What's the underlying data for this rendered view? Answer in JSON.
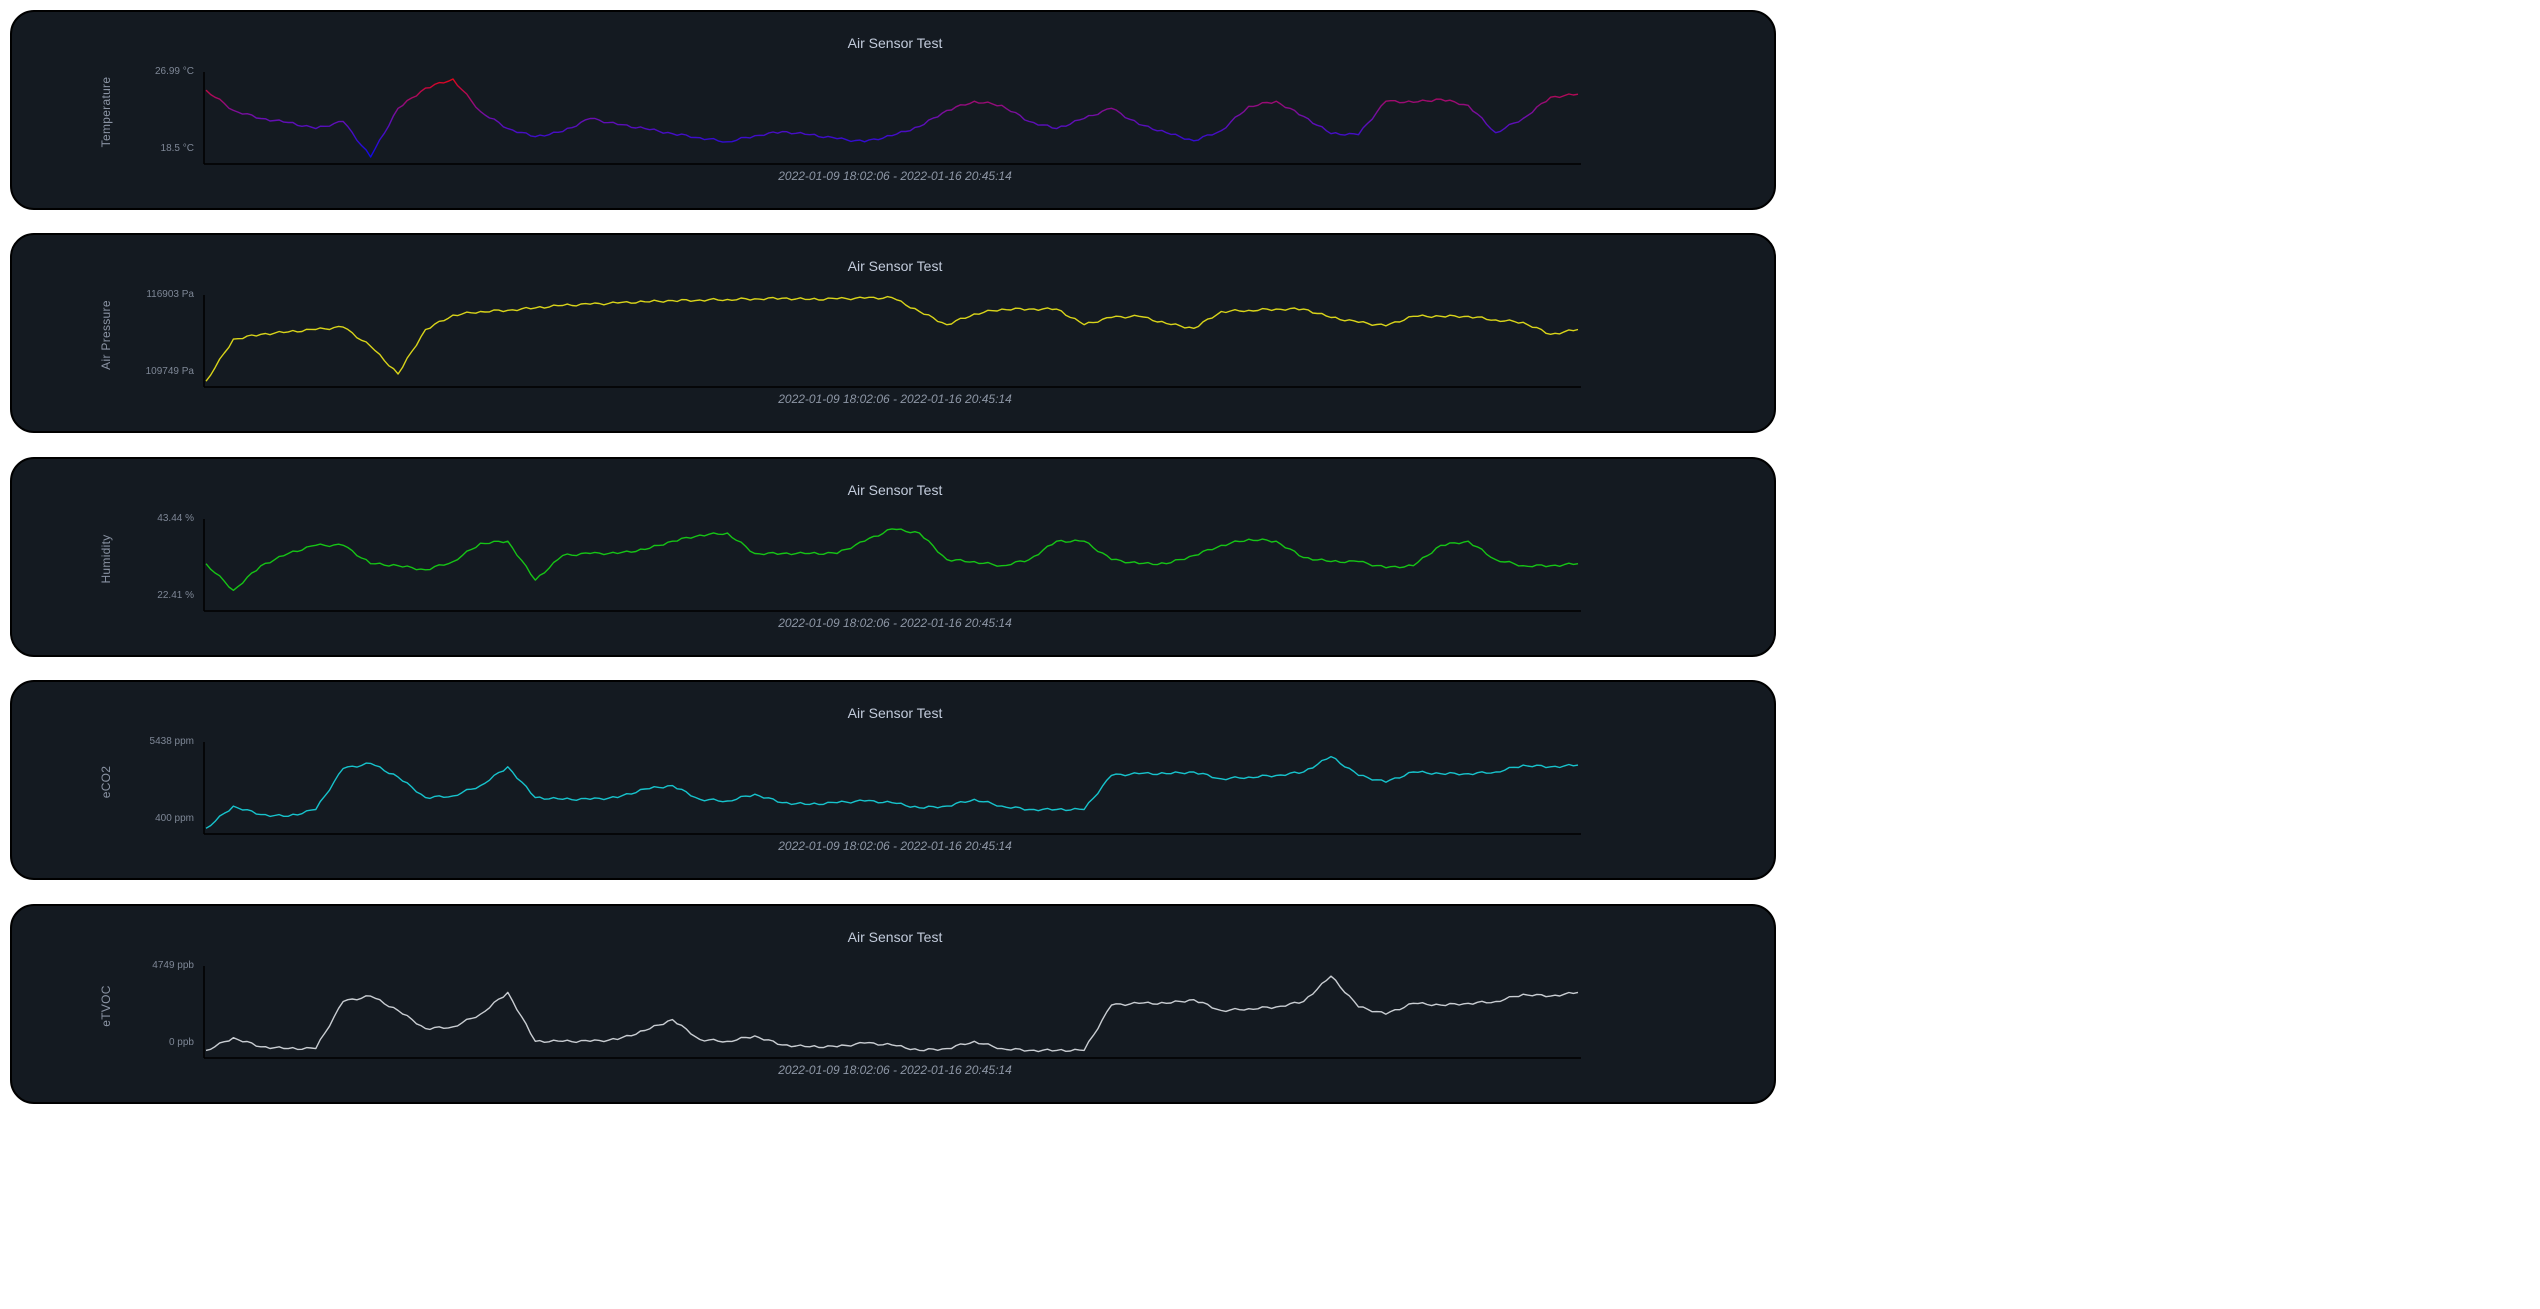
{
  "page": {
    "background": "#ffffff",
    "card_background": "#141a21"
  },
  "charts": [
    {
      "id": "temperature",
      "title": "Air Sensor Test",
      "ylabel": "Temperature",
      "ytick_top": "26.99 °C",
      "ytick_bottom": "18.5 °C",
      "daterange": "2022-01-09 18:02:06 - 2022-01-16 20:45:14",
      "color": "#e00012",
      "gradient": [
        "#0d0ae8",
        "#6b0fb0",
        "#e3051a"
      ]
    },
    {
      "id": "pressure",
      "title": "Air Sensor Test",
      "ylabel": "Air Pressure",
      "ytick_top": "116903 Pa",
      "ytick_bottom": "109749 Pa",
      "daterange": "2022-01-09 18:02:06 - 2022-01-16 20:45:14",
      "color": "#d9d41a"
    },
    {
      "id": "humidity",
      "title": "Air Sensor Test",
      "ylabel": "Humidity",
      "ytick_top": "43.44 %",
      "ytick_bottom": "22.41 %",
      "daterange": "2022-01-09 18:02:06 - 2022-01-16 20:45:14",
      "color": "#16c416"
    },
    {
      "id": "eco2",
      "title": "Air Sensor Test",
      "ylabel": "eCO2",
      "ytick_top": "5438 ppm",
      "ytick_bottom": "400 ppm",
      "daterange": "2022-01-09 18:02:06 - 2022-01-16 20:45:14",
      "color": "#17c3cc"
    },
    {
      "id": "etvoc",
      "title": "Air Sensor Test",
      "ylabel": "eTVOC",
      "ytick_top": "4749 ppb",
      "ytick_bottom": "0 ppb",
      "daterange": "2022-01-09 18:02:06 - 2022-01-16 20:45:14",
      "color": "#c9cdd2"
    }
  ],
  "chart_data": [
    {
      "type": "line",
      "title": "Air Sensor Test",
      "xlabel": "2022-01-09 18:02:06 - 2022-01-16 20:45:14",
      "ylabel": "Temperature",
      "ylim": [
        18.5,
        26.99
      ],
      "y_unit": "°C",
      "x": [
        0,
        2,
        4,
        6,
        8,
        10,
        12,
        14,
        16,
        18,
        20,
        22,
        24,
        26,
        28,
        30,
        32,
        34,
        36,
        38,
        40,
        42,
        44,
        46,
        48,
        50,
        52,
        54,
        56,
        58,
        60,
        62,
        64,
        66,
        68,
        70,
        72,
        74,
        76,
        78,
        80,
        82,
        84,
        86,
        88,
        90,
        92,
        94,
        96,
        98,
        100
      ],
      "values": [
        25.4,
        23.4,
        22.6,
        22.2,
        21.6,
        22.3,
        18.8,
        23.6,
        25.6,
        26.5,
        23.3,
        21.6,
        20.8,
        21.3,
        22.6,
        22.0,
        21.6,
        21.1,
        20.7,
        20.3,
        20.9,
        21.3,
        21.0,
        20.6,
        20.3,
        20.9,
        21.8,
        23.4,
        24.3,
        23.9,
        22.3,
        21.6,
        22.6,
        23.6,
        22.0,
        21.2,
        20.4,
        21.4,
        23.8,
        24.3,
        22.8,
        21.1,
        21.0,
        24.3,
        24.2,
        24.5,
        23.9,
        21.2,
        22.6,
        24.7,
        25.0
      ],
      "series": [
        {
          "name": "Temperature",
          "color_gradient": [
            "#0d0ae8",
            "#e3051a"
          ]
        }
      ],
      "grid": false,
      "legend": "none"
    },
    {
      "type": "line",
      "title": "Air Sensor Test",
      "xlabel": "2022-01-09 18:02:06 - 2022-01-16 20:45:14",
      "ylabel": "Air Pressure",
      "ylim": [
        109749,
        116903
      ],
      "y_unit": "Pa",
      "x": [
        0,
        2,
        4,
        6,
        8,
        10,
        12,
        14,
        16,
        18,
        20,
        22,
        24,
        26,
        28,
        30,
        32,
        34,
        36,
        38,
        40,
        42,
        44,
        46,
        48,
        50,
        52,
        54,
        56,
        58,
        60,
        62,
        64,
        66,
        68,
        70,
        72,
        74,
        76,
        78,
        80,
        82,
        84,
        86,
        88,
        90,
        92,
        94,
        96,
        98,
        100
      ],
      "values": [
        109900,
        113400,
        113800,
        114000,
        114200,
        114400,
        112800,
        110500,
        114200,
        115400,
        115700,
        115800,
        116000,
        116200,
        116300,
        116400,
        116500,
        116600,
        116650,
        116700,
        116750,
        116800,
        116700,
        116750,
        116800,
        116850,
        115700,
        114600,
        115500,
        115900,
        115900,
        115900,
        114600,
        115200,
        115300,
        114700,
        114300,
        115700,
        115800,
        115900,
        115900,
        115200,
        114800,
        114500,
        115300,
        115300,
        115300,
        115000,
        114800,
        113800,
        114200
      ],
      "series": [
        {
          "name": "Air Pressure",
          "color": "#d9d41a"
        }
      ],
      "grid": false,
      "legend": "none"
    },
    {
      "type": "line",
      "title": "Air Sensor Test",
      "xlabel": "2022-01-09 18:02:06 - 2022-01-16 20:45:14",
      "ylabel": "Humidity",
      "ylim": [
        22.41,
        43.44
      ],
      "y_unit": "%",
      "x": [
        0,
        2,
        4,
        6,
        8,
        10,
        12,
        14,
        16,
        18,
        20,
        22,
        24,
        26,
        28,
        30,
        32,
        34,
        36,
        38,
        40,
        42,
        44,
        46,
        48,
        50,
        52,
        54,
        56,
        58,
        60,
        62,
        64,
        66,
        68,
        70,
        72,
        74,
        76,
        78,
        80,
        82,
        84,
        86,
        88,
        90,
        92,
        94,
        96,
        98,
        100
      ],
      "values": [
        33.0,
        26.5,
        32.5,
        35.5,
        37.5,
        37.5,
        33.0,
        32.5,
        31.5,
        33.5,
        38.0,
        38.5,
        29.0,
        35.0,
        35.5,
        35.5,
        36.5,
        38.5,
        40.0,
        40.5,
        35.5,
        35.5,
        35.5,
        35.5,
        38.5,
        41.5,
        40.5,
        34.0,
        33.5,
        32.5,
        34.0,
        38.5,
        38.5,
        34.0,
        33.0,
        33.0,
        35.0,
        37.5,
        39.0,
        38.5,
        34.5,
        33.5,
        33.5,
        32.0,
        32.5,
        37.5,
        38.5,
        34.0,
        32.5,
        32.5,
        33.0
      ],
      "series": [
        {
          "name": "Humidity",
          "color": "#16c416"
        }
      ],
      "grid": false,
      "legend": "none"
    },
    {
      "type": "line",
      "title": "Air Sensor Test",
      "xlabel": "2022-01-09 18:02:06 - 2022-01-16 20:45:14",
      "ylabel": "eCO2",
      "ylim": [
        400,
        5438
      ],
      "y_unit": "ppm",
      "x": [
        0,
        2,
        4,
        6,
        8,
        10,
        12,
        14,
        16,
        18,
        20,
        22,
        24,
        26,
        28,
        30,
        32,
        34,
        36,
        38,
        40,
        42,
        44,
        46,
        48,
        50,
        52,
        54,
        56,
        58,
        60,
        62,
        64,
        66,
        68,
        70,
        72,
        74,
        76,
        78,
        80,
        82,
        84,
        86,
        88,
        90,
        92,
        94,
        96,
        98,
        100
      ],
      "values": [
        500,
        1800,
        1300,
        1200,
        1600,
        4000,
        4300,
        3500,
        2300,
        2400,
        3000,
        4100,
        2300,
        2200,
        2200,
        2300,
        2800,
        3000,
        2200,
        2100,
        2500,
        2000,
        1900,
        2000,
        2100,
        2000,
        1700,
        1800,
        2200,
        1800,
        1600,
        1600,
        1600,
        3600,
        3700,
        3700,
        3800,
        3400,
        3500,
        3600,
        3800,
        4700,
        3600,
        3200,
        3800,
        3700,
        3700,
        3800,
        4200,
        4100,
        4200
      ],
      "series": [
        {
          "name": "eCO2",
          "color": "#17c3cc"
        }
      ],
      "grid": false,
      "legend": "none"
    },
    {
      "type": "line",
      "title": "Air Sensor Test",
      "xlabel": "2022-01-09 18:02:06 - 2022-01-16 20:45:14",
      "ylabel": "eTVOC",
      "ylim": [
        0,
        4749
      ],
      "y_unit": "ppb",
      "x": [
        0,
        2,
        4,
        6,
        8,
        10,
        12,
        14,
        16,
        18,
        20,
        22,
        24,
        26,
        28,
        30,
        32,
        34,
        36,
        38,
        40,
        42,
        44,
        46,
        48,
        50,
        52,
        54,
        56,
        58,
        60,
        62,
        64,
        66,
        68,
        70,
        72,
        74,
        76,
        78,
        80,
        82,
        84,
        86,
        88,
        90,
        92,
        94,
        96,
        98,
        100
      ],
      "values": [
        200,
        900,
        400,
        300,
        300,
        2900,
        3200,
        2400,
        1400,
        1500,
        2200,
        3400,
        700,
        700,
        700,
        800,
        1300,
        1900,
        800,
        700,
        1000,
        500,
        400,
        400,
        600,
        500,
        200,
        300,
        700,
        300,
        200,
        200,
        200,
        2700,
        2800,
        2800,
        3000,
        2400,
        2500,
        2600,
        2900,
        4300,
        2600,
        2200,
        2800,
        2700,
        2800,
        2900,
        3300,
        3200,
        3400
      ],
      "series": [
        {
          "name": "eTVOC",
          "color": "#c9cdd2"
        }
      ],
      "grid": false,
      "legend": "none"
    }
  ]
}
